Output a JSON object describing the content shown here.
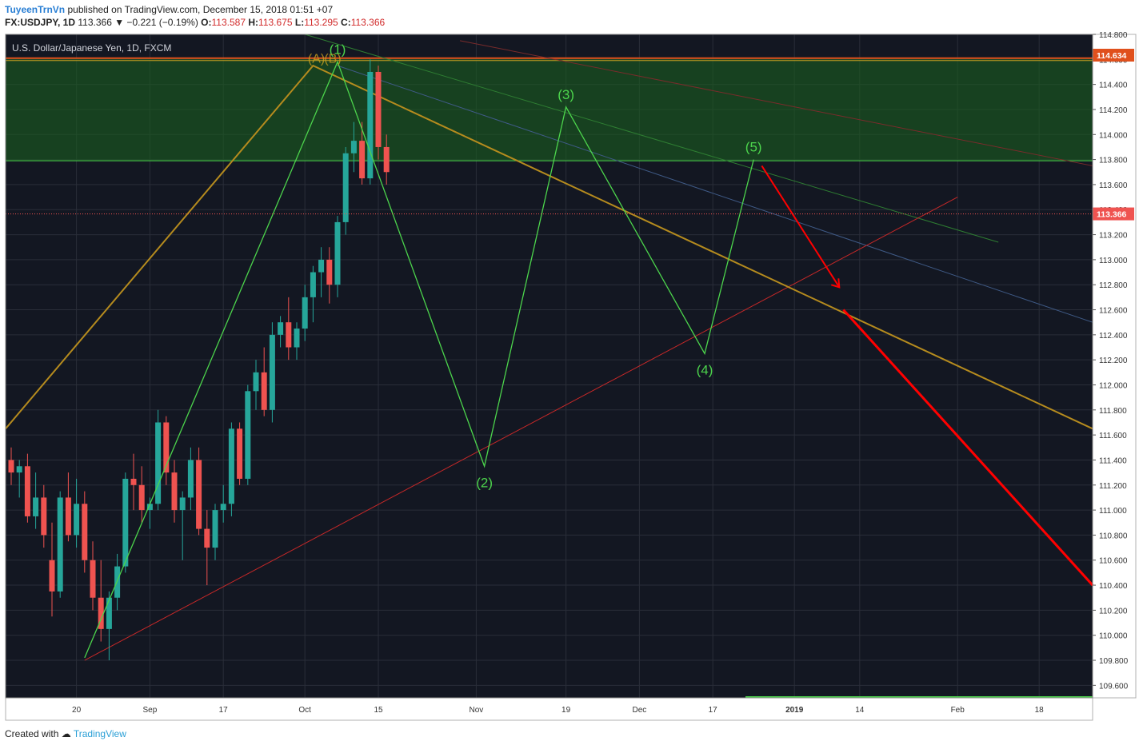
{
  "header": {
    "username": "TuyeenTrnVn",
    "published_text": "published on TradingView.com, December 15, 2018 01:51 +07",
    "symbol": "FX:USDJPY, 1D",
    "last": "113.366",
    "change": "▼ −0.221 (−0.19%)",
    "open_label": "O:",
    "open": "113.587",
    "high_label": "H:",
    "high": "113.675",
    "low_label": "L:",
    "low": "113.295",
    "close_label": "C:",
    "close": "113.366"
  },
  "footer": {
    "created_text": "Created with",
    "brand": "TradingView"
  },
  "chart_data": {
    "type": "candlestick",
    "title": "U.S. Dollar/Japanese Yen, 1D, FXCM",
    "ylim": [
      109.5,
      114.8
    ],
    "y_ticks": [
      114.8,
      114.6,
      114.4,
      114.2,
      114.0,
      113.8,
      113.6,
      113.4,
      113.2,
      113.0,
      112.8,
      112.6,
      112.4,
      112.2,
      112.0,
      111.8,
      111.6,
      111.4,
      111.2,
      111.0,
      110.8,
      110.6,
      110.4,
      110.2,
      110.0,
      109.8,
      109.6
    ],
    "x_ticks": [
      {
        "label": "20",
        "i": 8
      },
      {
        "label": "Sep",
        "i": 17
      },
      {
        "label": "17",
        "i": 26
      },
      {
        "label": "Oct",
        "i": 36
      },
      {
        "label": "15",
        "i": 45
      },
      {
        "label": "Nov",
        "i": 57
      },
      {
        "label": "19",
        "i": 68
      },
      {
        "label": "Dec",
        "i": 77
      },
      {
        "label": "17",
        "i": 86
      },
      {
        "label": "2019",
        "i": 96
      },
      {
        "label": "14",
        "i": 104
      },
      {
        "label": "Feb",
        "i": 116
      },
      {
        "label": "18",
        "i": 126
      }
    ],
    "price_labels": [
      {
        "value": 114.634,
        "text": "114.634",
        "color": "#e0501c"
      },
      {
        "value": 113.366,
        "text": "113.366",
        "color": "#ef5350"
      }
    ],
    "colors": {
      "up": "#26a69a",
      "down": "#ef5350",
      "background": "#131722",
      "zone": "#1b5e20",
      "wave": "#4cd44c",
      "trend": "#b58b1e",
      "support": "#c62828",
      "projection": "#ff0000"
    },
    "candles": [
      {
        "o": 111.4,
        "h": 111.5,
        "l": 111.2,
        "c": 111.3
      },
      {
        "o": 111.3,
        "h": 111.4,
        "l": 111.1,
        "c": 111.35
      },
      {
        "o": 111.35,
        "h": 111.45,
        "l": 110.9,
        "c": 110.95
      },
      {
        "o": 110.95,
        "h": 111.3,
        "l": 110.85,
        "c": 111.1
      },
      {
        "o": 111.1,
        "h": 111.2,
        "l": 110.7,
        "c": 110.8
      },
      {
        "o": 110.6,
        "h": 110.9,
        "l": 110.15,
        "c": 110.35
      },
      {
        "o": 110.35,
        "h": 111.15,
        "l": 110.3,
        "c": 111.1
      },
      {
        "o": 111.1,
        "h": 111.3,
        "l": 110.75,
        "c": 110.8
      },
      {
        "o": 110.8,
        "h": 111.25,
        "l": 110.7,
        "c": 111.05
      },
      {
        "o": 111.05,
        "h": 111.15,
        "l": 110.5,
        "c": 110.6
      },
      {
        "o": 110.6,
        "h": 110.75,
        "l": 110.2,
        "c": 110.3
      },
      {
        "o": 110.3,
        "h": 110.6,
        "l": 109.95,
        "c": 110.05
      },
      {
        "o": 110.05,
        "h": 110.35,
        "l": 109.8,
        "c": 110.3
      },
      {
        "o": 110.3,
        "h": 110.65,
        "l": 110.2,
        "c": 110.55
      },
      {
        "o": 110.55,
        "h": 111.3,
        "l": 110.5,
        "c": 111.25
      },
      {
        "o": 111.25,
        "h": 111.45,
        "l": 111.0,
        "c": 111.2
      },
      {
        "o": 111.2,
        "h": 111.35,
        "l": 110.9,
        "c": 111.0
      },
      {
        "o": 111.0,
        "h": 111.1,
        "l": 110.85,
        "c": 111.05
      },
      {
        "o": 111.05,
        "h": 111.8,
        "l": 111.0,
        "c": 111.7
      },
      {
        "o": 111.7,
        "h": 111.75,
        "l": 111.2,
        "c": 111.3
      },
      {
        "o": 111.3,
        "h": 111.4,
        "l": 110.9,
        "c": 111.0
      },
      {
        "o": 111.0,
        "h": 111.15,
        "l": 110.6,
        "c": 111.1
      },
      {
        "o": 111.1,
        "h": 111.5,
        "l": 111.0,
        "c": 111.4
      },
      {
        "o": 111.4,
        "h": 111.5,
        "l": 110.8,
        "c": 110.85
      },
      {
        "o": 110.85,
        "h": 111.0,
        "l": 110.4,
        "c": 110.7
      },
      {
        "o": 110.7,
        "h": 111.05,
        "l": 110.6,
        "c": 111.0
      },
      {
        "o": 111.0,
        "h": 111.2,
        "l": 110.9,
        "c": 111.05
      },
      {
        "o": 111.05,
        "h": 111.7,
        "l": 110.95,
        "c": 111.65
      },
      {
        "o": 111.65,
        "h": 111.7,
        "l": 111.2,
        "c": 111.25
      },
      {
        "o": 111.25,
        "h": 112.0,
        "l": 111.2,
        "c": 111.95
      },
      {
        "o": 111.95,
        "h": 112.2,
        "l": 111.8,
        "c": 112.1
      },
      {
        "o": 112.1,
        "h": 112.3,
        "l": 111.75,
        "c": 111.8
      },
      {
        "o": 111.8,
        "h": 112.5,
        "l": 111.7,
        "c": 112.4
      },
      {
        "o": 112.4,
        "h": 112.55,
        "l": 112.3,
        "c": 112.5
      },
      {
        "o": 112.5,
        "h": 112.7,
        "l": 112.2,
        "c": 112.3
      },
      {
        "o": 112.3,
        "h": 112.5,
        "l": 112.2,
        "c": 112.45
      },
      {
        "o": 112.45,
        "h": 112.8,
        "l": 112.35,
        "c": 112.7
      },
      {
        "o": 112.7,
        "h": 112.95,
        "l": 112.5,
        "c": 112.9
      },
      {
        "o": 112.9,
        "h": 113.1,
        "l": 112.7,
        "c": 113.0
      },
      {
        "o": 113.0,
        "h": 113.1,
        "l": 112.65,
        "c": 112.8
      },
      {
        "o": 112.8,
        "h": 113.35,
        "l": 112.7,
        "c": 113.3
      },
      {
        "o": 113.3,
        "h": 113.9,
        "l": 113.2,
        "c": 113.85
      },
      {
        "o": 113.85,
        "h": 114.1,
        "l": 113.7,
        "c": 113.95
      },
      {
        "o": 113.95,
        "h": 114.1,
        "l": 113.6,
        "c": 113.65
      },
      {
        "o": 113.65,
        "h": 114.6,
        "l": 113.6,
        "c": 114.5
      },
      {
        "o": 114.5,
        "h": 114.55,
        "l": 113.8,
        "c": 113.9
      },
      {
        "o": 113.9,
        "h": 114.0,
        "l": 113.6,
        "c": 113.7
      }
    ],
    "waves": [
      {
        "label": "(1)",
        "i": 40,
        "price": 114.58
      },
      {
        "label": "(2)",
        "i": 58,
        "price": 111.35
      },
      {
        "label": "(3)",
        "i": 68,
        "price": 114.22
      },
      {
        "label": "(4)",
        "i": 85,
        "price": 112.25
      },
      {
        "label": "(5)",
        "i": 91,
        "price": 113.8
      }
    ],
    "extra_labels": [
      {
        "label": "(A)",
        "i": 38,
        "price": 114.6
      },
      {
        "label": "(B)",
        "i": 40,
        "price": 114.6
      }
    ],
    "resistance_zone": [
      113.79,
      114.61
    ]
  }
}
